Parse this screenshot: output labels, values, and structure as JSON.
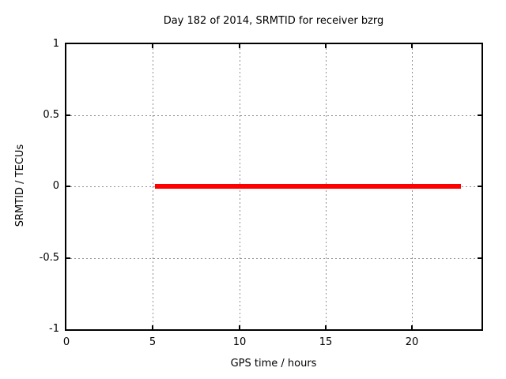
{
  "chart_data": {
    "type": "line",
    "title": "Day 182 of 2014, SRMTID for receiver bzrg",
    "xlabel": "GPS time / hours",
    "ylabel": "SRMTID / TECUs",
    "xlim": [
      0,
      24
    ],
    "ylim": [
      -1,
      1
    ],
    "xticks": [
      0,
      5,
      10,
      15,
      20
    ],
    "yticks": [
      -1,
      -0.5,
      0,
      0.5,
      1
    ],
    "xtick_labels": [
      "0",
      "5",
      "10",
      "15",
      "20"
    ],
    "ytick_labels_top_to_bottom": [
      "1",
      "0.5",
      "0",
      "-0.5",
      "-1"
    ],
    "grid": true,
    "grid_style": "gray dashed at each major tick",
    "legend_position": "none",
    "border": "full box with mirrored inward ticks",
    "series": [
      {
        "name": "SRMTID",
        "color": "#ff0000",
        "style": "thick solid horizontal segment",
        "y": 0,
        "x_start": 5.1,
        "x_end": 22.8,
        "points": [
          [
            5.1,
            0
          ],
          [
            22.8,
            0
          ]
        ]
      }
    ]
  },
  "colors": {
    "background": "#ffffff",
    "axis": "#000000",
    "text": "#000000",
    "grid": "#8f8f8f",
    "series": "#ff0000"
  }
}
